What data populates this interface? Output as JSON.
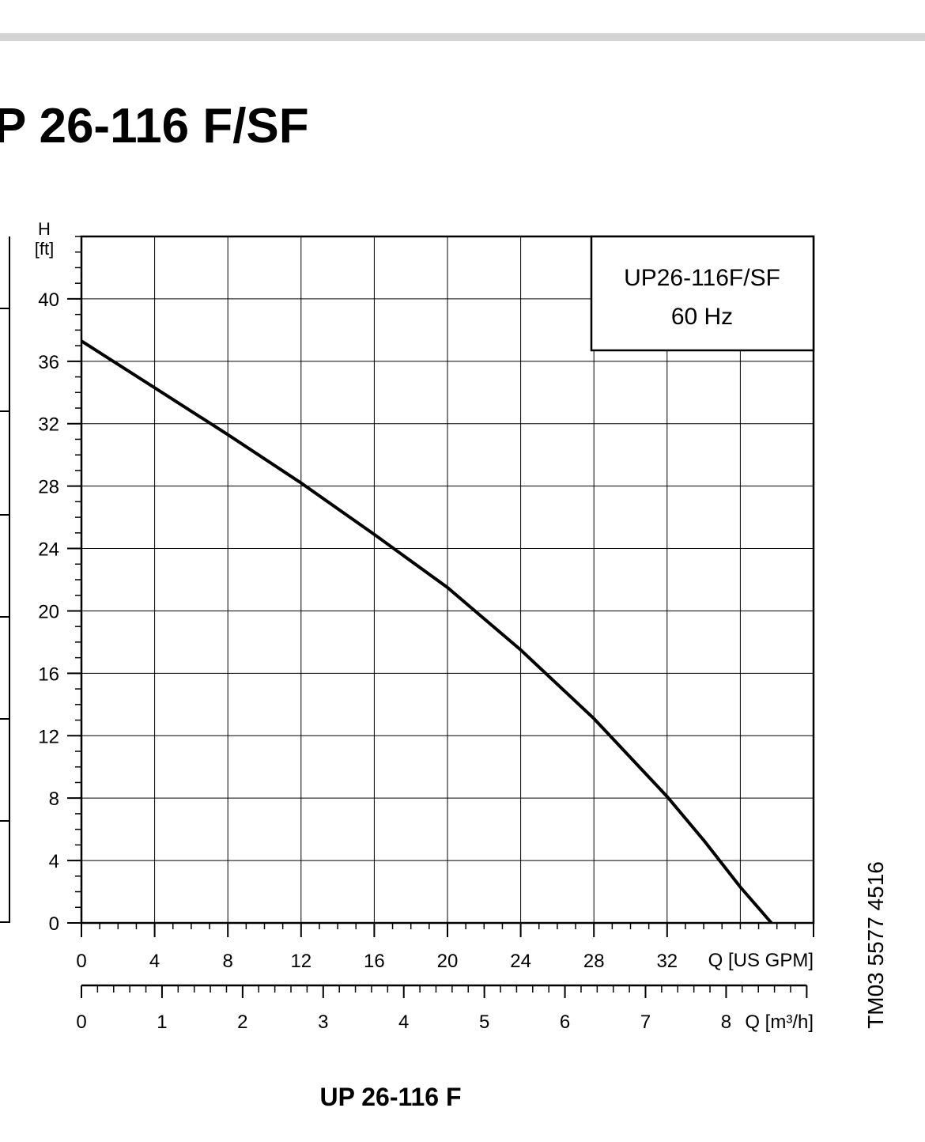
{
  "header": {
    "title": "P 26-116 F/SF"
  },
  "chart_data": {
    "type": "line",
    "ylabel": "H",
    "yunit": "[ft]",
    "xlabel": "Q [US GPM]",
    "x2label": "Q [m³/h]",
    "x": [
      0,
      4,
      8,
      12,
      16,
      20,
      24,
      28,
      32,
      34,
      36,
      37.7
    ],
    "series": [
      {
        "name": "UP26-116F/SF",
        "color": "#000000",
        "values": [
          37.3,
          34.3,
          31.3,
          28.2,
          24.9,
          21.5,
          17.5,
          13.1,
          8.1,
          5.3,
          2.3,
          0
        ]
      }
    ],
    "annotation": "60 Hz",
    "xlim": [
      0,
      40
    ],
    "xticks": [
      0,
      4,
      8,
      12,
      16,
      20,
      24,
      28,
      32
    ],
    "xgrid": [
      4,
      8,
      12,
      16,
      20,
      24,
      28,
      32,
      36
    ],
    "x_minor_step": 1,
    "ylim": [
      0,
      44
    ],
    "yticks": [
      0,
      4,
      8,
      12,
      16,
      20,
      24,
      28,
      32,
      36,
      40
    ],
    "y_minor_step": 1,
    "x2lim": [
      0,
      9
    ],
    "x2ticks": [
      0,
      1,
      2,
      3,
      4,
      5,
      6,
      7,
      8
    ],
    "x2_minor_step": 0.2,
    "grid": true
  },
  "footer": {
    "caption": "UP 26-116 F",
    "figure_id": "TM03 5577 4516"
  }
}
